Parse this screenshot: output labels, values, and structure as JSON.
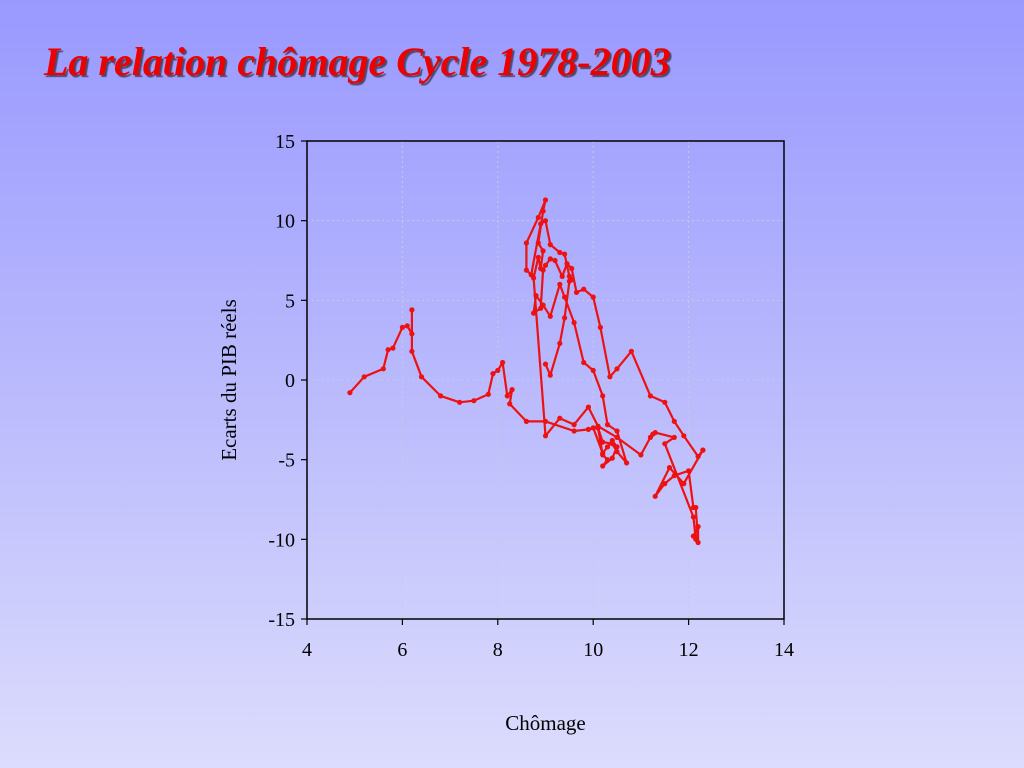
{
  "slide": {
    "title": "La relation chômage Cycle 1978-2003"
  },
  "chart_data": {
    "type": "line",
    "title": "",
    "xlabel": "Chômage",
    "ylabel": "Ecarts du PIB réels",
    "xlim": [
      4,
      14
    ],
    "ylim": [
      -15,
      15
    ],
    "xticks": [
      4,
      6,
      8,
      10,
      12,
      14
    ],
    "yticks": [
      15,
      10,
      5,
      0,
      -5,
      -10,
      -15
    ],
    "grid": true,
    "markers": true,
    "line_color": "#ee1111",
    "x": [
      4.9,
      5.2,
      5.6,
      5.7,
      5.8,
      6.0,
      6.1,
      6.2,
      6.2,
      6.2,
      6.4,
      6.8,
      7.2,
      7.5,
      7.8,
      7.9,
      8.0,
      8.1,
      8.2,
      8.3,
      8.25,
      8.6,
      9.0,
      9.6,
      9.9,
      10.1,
      10.2,
      10.3,
      10.2,
      10.4,
      10.5,
      10.4,
      10.3,
      10.2,
      10.0,
      10.1,
      10.2,
      10.4,
      10.5,
      10.7,
      10.5,
      10.3,
      10.2,
      10.0,
      9.8,
      9.6,
      9.4,
      9.3,
      9.1,
      8.95,
      8.8,
      8.75,
      8.9,
      8.95,
      9.0,
      9.1,
      9.2,
      9.35,
      9.45,
      9.55,
      9.65,
      9.8,
      10.0,
      10.15,
      10.35,
      10.5,
      10.8,
      11.2,
      11.5,
      11.7,
      11.9,
      12.2,
      12.3,
      12.3,
      11.9,
      11.6,
      11.3,
      11.5,
      11.7,
      12.0,
      12.1,
      12.15,
      12.2,
      12.2,
      12.1,
      12.15,
      12.1,
      11.5,
      11.7,
      11.3,
      11.25,
      11.2,
      11.0,
      10.5,
      10.1,
      9.9,
      9.6,
      9.3,
      9.0,
      8.75,
      8.85,
      8.9,
      8.95,
      8.85,
      8.95,
      9.0,
      8.85,
      8.6,
      8.6,
      8.7,
      8.9,
      9.0,
      9.1,
      9.3,
      9.4,
      9.5,
      9.55,
      9.5,
      9.4,
      9.3,
      9.1,
      9.0
    ],
    "y": [
      -0.8,
      0.2,
      0.7,
      1.9,
      2.0,
      3.3,
      3.4,
      2.9,
      4.4,
      1.8,
      0.2,
      -1.0,
      -1.4,
      -1.3,
      -0.9,
      0.4,
      0.6,
      1.1,
      -1.0,
      -0.6,
      -1.5,
      -2.6,
      -2.6,
      -3.2,
      -3.1,
      -3.0,
      -4.7,
      -5.0,
      -5.4,
      -4.9,
      -4.2,
      -3.8,
      -4.2,
      -4.6,
      -3.0,
      -3.0,
      -3.9,
      -4.0,
      -4.5,
      -5.2,
      -3.2,
      -2.8,
      -1.0,
      0.6,
      1.1,
      3.6,
      5.2,
      6.0,
      4.0,
      4.7,
      5.3,
      4.2,
      4.5,
      6.9,
      7.2,
      7.6,
      7.5,
      6.5,
      7.3,
      7.0,
      5.5,
      5.7,
      5.2,
      3.3,
      0.2,
      0.7,
      1.8,
      -1.0,
      -1.4,
      -2.6,
      -3.5,
      -4.8,
      -4.4,
      -4.4,
      -6.5,
      -5.5,
      -7.3,
      -6.5,
      -6.0,
      -5.7,
      -8.0,
      -8.0,
      -10.2,
      -9.2,
      -9.8,
      -10.0,
      -8.6,
      -4.0,
      -3.6,
      -3.3,
      -3.4,
      -3.6,
      -4.7,
      -3.6,
      -2.9,
      -1.7,
      -2.8,
      -2.4,
      -3.5,
      6.4,
      7.7,
      7.0,
      8.1,
      8.6,
      10.6,
      11.3,
      10.2,
      8.6,
      6.9,
      6.6,
      9.8,
      10.0,
      8.5,
      8.0,
      7.9,
      6.5,
      6.3,
      6.2,
      3.9,
      2.3,
      0.3,
      1.0
    ]
  }
}
